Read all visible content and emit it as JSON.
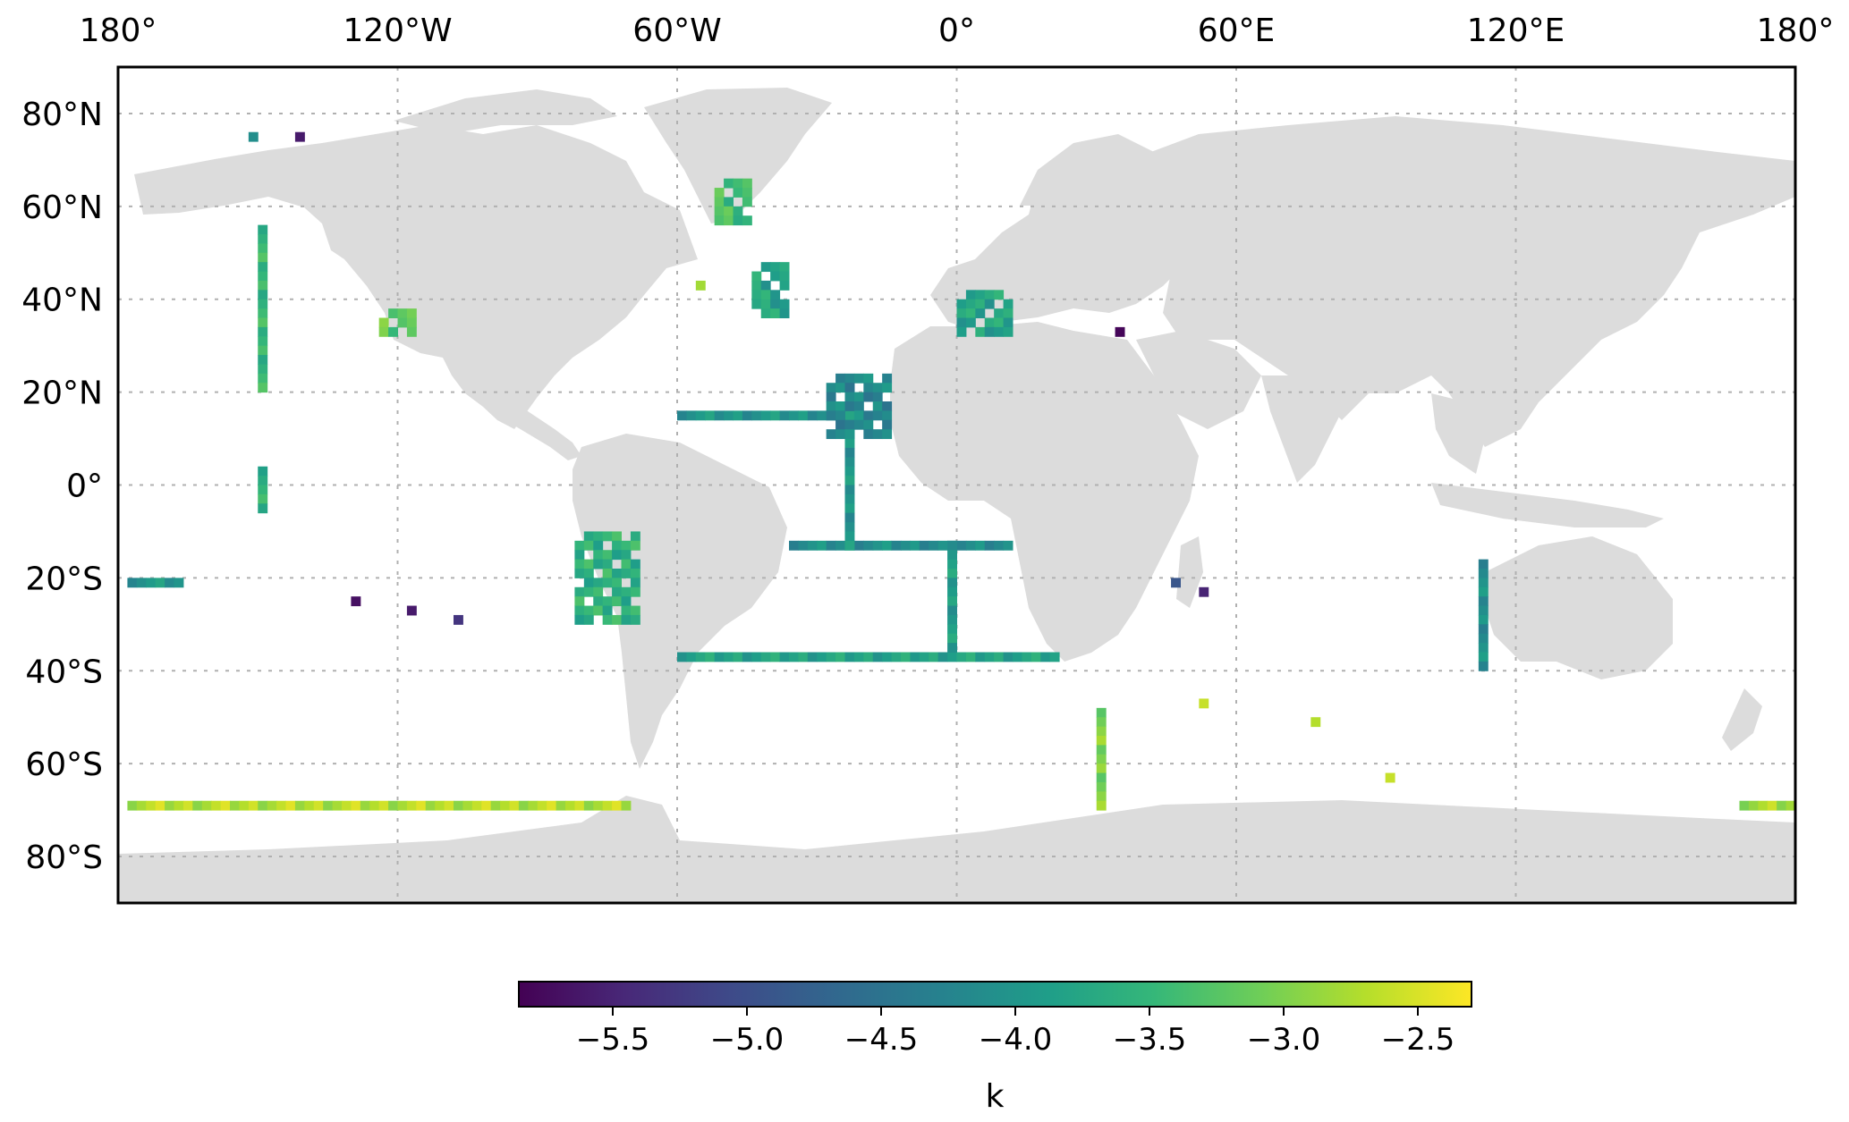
{
  "map": {
    "lon_ticks": [
      "180°",
      "120°W",
      "60°W",
      "0°",
      "60°E",
      "120°E",
      "180°"
    ],
    "lon_values": [
      -180,
      -120,
      -60,
      0,
      60,
      120,
      180
    ],
    "lat_ticks": [
      "80°N",
      "60°N",
      "40°N",
      "20°N",
      "0°",
      "20°S",
      "40°S",
      "60°S",
      "80°S"
    ],
    "lat_values": [
      80,
      60,
      40,
      20,
      0,
      -20,
      -40,
      -60,
      -80
    ],
    "lon_range": [
      -180,
      180
    ],
    "lat_range": [
      -90,
      90
    ],
    "grid": true,
    "land_color": "#dcdcdc",
    "grid_color": "#b0b0b0"
  },
  "colorbar": {
    "label": "k",
    "range": [
      -5.85,
      -2.3
    ],
    "ticks": [
      "−5.5",
      "−5.0",
      "−4.5",
      "−4.0",
      "−3.5",
      "−3.0",
      "−2.5"
    ],
    "tick_values": [
      -5.5,
      -5.0,
      -4.5,
      -4.0,
      -3.5,
      -3.0,
      -2.5
    ],
    "colormap": "viridis",
    "stops": [
      "#440154",
      "#482878",
      "#3e4a89",
      "#31688e",
      "#26828e",
      "#1f9e89",
      "#35b779",
      "#6ece58",
      "#b5de2b",
      "#fde725"
    ]
  },
  "chart_data": {
    "type": "heatmap",
    "cell_size_deg": 2,
    "value_range": [
      -5.85,
      -2.3
    ],
    "tracks": [
      {
        "name": "",
        "lats": [
          -36,
          -36
        ],
        "lons": [
          -60,
          20
        ],
        "value": -3.8
      },
      {
        "name": "",
        "lats": [
          -12,
          -12
        ],
        "lons": [
          -36,
          10
        ],
        "value": -4.1
      },
      {
        "name": "",
        "lats": [
          16,
          16
        ],
        "lons": [
          -60,
          -28
        ],
        "value": -4.0
      },
      {
        "name": "",
        "lats": [
          -68,
          -68
        ],
        "lons": [
          -178,
          -72
        ],
        "value": -2.7
      },
      {
        "name": "",
        "lats": [
          -68,
          -68
        ],
        "lons": [
          168,
          180
        ],
        "value": -2.8
      },
      {
        "name": "",
        "lats": [
          -12,
          -34
        ],
        "lons": [
          -2,
          -2
        ],
        "value": -3.9
      },
      {
        "name": "",
        "lats": [
          22,
          -12
        ],
        "lons": [
          -24,
          -24
        ],
        "value": -4.0
      },
      {
        "name": "",
        "lats": [
          -16,
          -38
        ],
        "lons": [
          112,
          112
        ],
        "value": -4.1
      },
      {
        "name": "",
        "lats": [
          56,
          22
        ],
        "lons": [
          -150,
          -150
        ],
        "value": -3.5
      },
      {
        "name": "",
        "lats": [
          -48,
          -68
        ],
        "lons": [
          30,
          30
        ],
        "value": -3.0
      },
      {
        "name": "",
        "lats": [
          -20,
          -20
        ],
        "lons": [
          -178,
          -168
        ],
        "value": -4.0
      },
      {
        "name": "",
        "lats": [
          4,
          -4
        ],
        "lons": [
          -150,
          -150
        ],
        "value": -3.6
      }
    ],
    "blocks": [
      {
        "lats": [
          24,
          12
        ],
        "lons": [
          -28,
          -16
        ],
        "value": -4.2
      },
      {
        "lats": [
          -10,
          -28
        ],
        "lons": [
          -82,
          -70
        ],
        "value": -3.6
      },
      {
        "lats": [
          42,
          34
        ],
        "lons": [
          0,
          10
        ],
        "value": -3.8
      },
      {
        "lats": [
          66,
          58
        ],
        "lons": [
          -52,
          -46
        ],
        "value": -3.4
      },
      {
        "lats": [
          48,
          38
        ],
        "lons": [
          -44,
          -38
        ],
        "value": -3.8
      },
      {
        "lats": [
          38,
          34
        ],
        "lons": [
          -124,
          -118
        ],
        "value": -3.2
      }
    ],
    "points": [
      {
        "lat": 34,
        "lon": 34,
        "value": -5.8
      },
      {
        "lat": 76,
        "lon": -142,
        "value": -5.6
      },
      {
        "lat": -24,
        "lon": -130,
        "value": -5.7
      },
      {
        "lat": -28,
        "lon": -108,
        "value": -5.3
      },
      {
        "lat": -22,
        "lon": 52,
        "value": -5.5
      },
      {
        "lat": -26,
        "lon": -118,
        "value": -5.6
      },
      {
        "lat": -20,
        "lon": 46,
        "value": -4.9
      },
      {
        "lat": -46,
        "lon": 52,
        "value": -2.6
      },
      {
        "lat": -50,
        "lon": 76,
        "value": -2.7
      },
      {
        "lat": -62,
        "lon": 92,
        "value": -2.6
      },
      {
        "lat": 44,
        "lon": -56,
        "value": -2.8
      },
      {
        "lat": 76,
        "lon": -152,
        "value": -4.1
      }
    ]
  }
}
